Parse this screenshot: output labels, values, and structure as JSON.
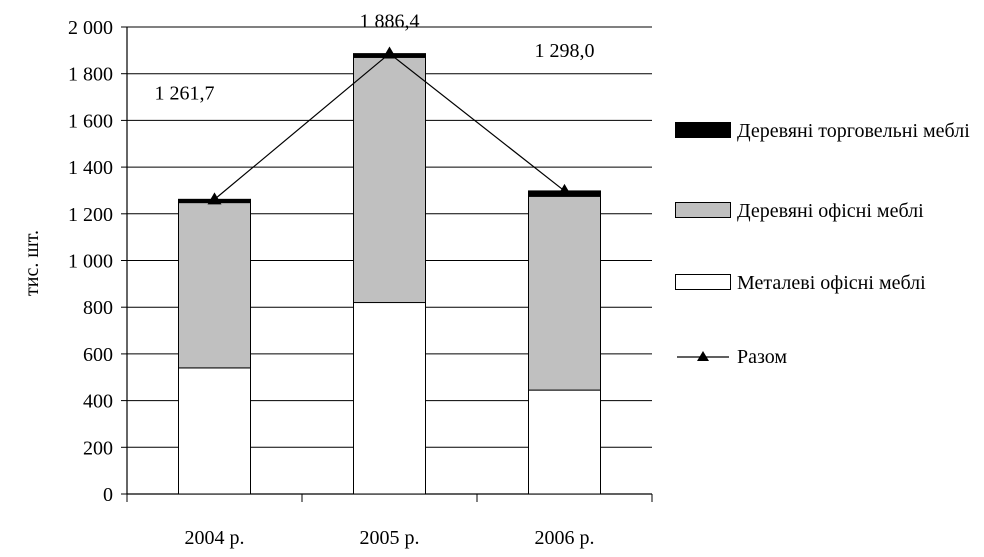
{
  "chart_data": {
    "type": "bar",
    "stacked": true,
    "categories": [
      "2004 р.",
      "2005 р.",
      "2006 р."
    ],
    "series": [
      {
        "name": "Металеві офісні меблі",
        "values": [
          540,
          820,
          445
        ],
        "color": "#ffffff"
      },
      {
        "name": "Деревяні офісні меблі",
        "values": [
          708,
          1050,
          830
        ],
        "color": "#c0c0c0"
      },
      {
        "name": "Деревяні  торговельні меблі",
        "values": [
          14,
          16,
          23
        ],
        "color": "#000000"
      }
    ],
    "line": {
      "name": "Разом",
      "values": [
        1261.7,
        1886.4,
        1298.0
      ],
      "color": "#000000",
      "marker": "triangle"
    },
    "data_labels": [
      "1 261,7",
      "1 886,4",
      "1 298,0"
    ],
    "yticks": [
      0,
      200,
      400,
      600,
      800,
      1000,
      1200,
      1400,
      1600,
      1800,
      2000
    ],
    "ytick_labels": [
      "0",
      "200",
      "400",
      "600",
      "800",
      "1 000",
      "1 200",
      "1 400",
      "1 600",
      "1 800",
      "2 000"
    ],
    "ylabel": "тис. шт.",
    "xlabel": "",
    "ylim": [
      0,
      2000
    ],
    "grid": true,
    "legend_position": "right"
  }
}
